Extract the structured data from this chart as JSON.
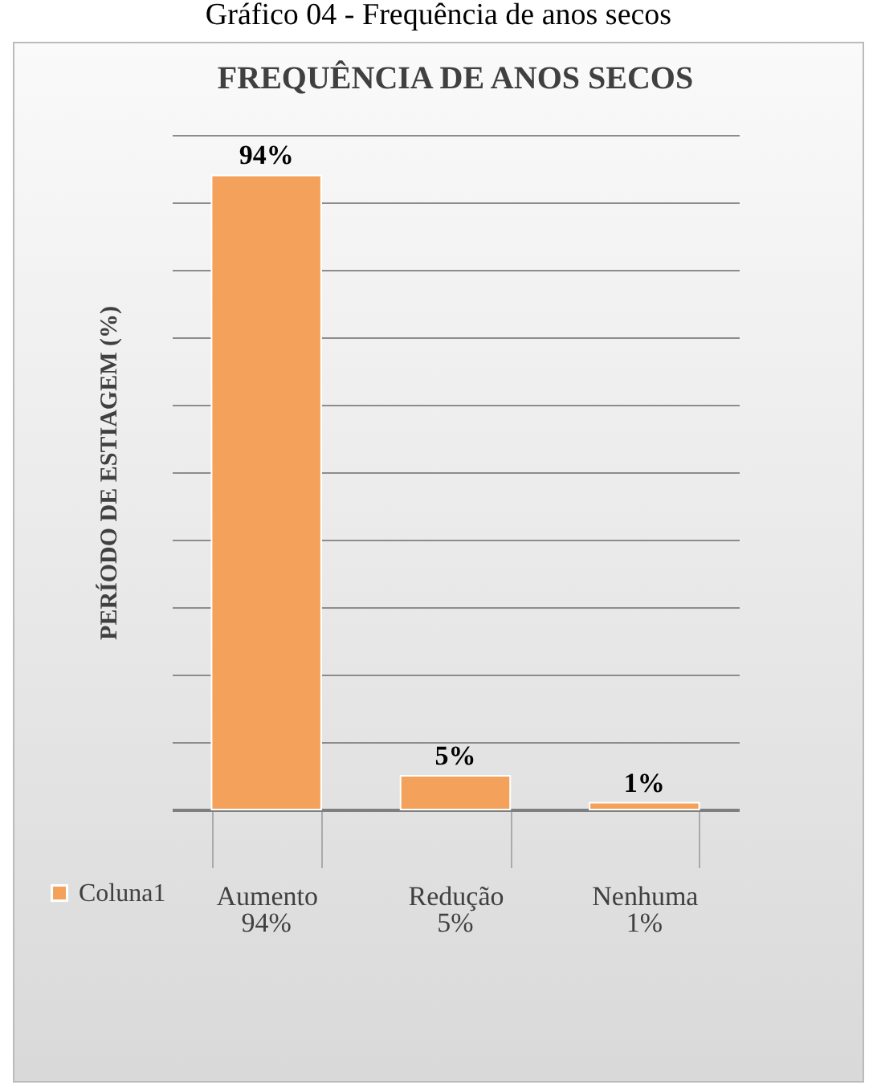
{
  "chart_data": {
    "type": "bar",
    "title": "FREQUÊNCIA DE ANOS SECOS",
    "ylabel": "PERÍODO DE ESTIAGEM (%)",
    "annotations": [
      "Gráfico 04 - Frequência de anos secos"
    ],
    "categories": [
      "Aumento",
      "Redução",
      "Nenhuma"
    ],
    "series": [
      {
        "name": "Coluna1",
        "color": "#f4a25b",
        "values": [
          94,
          5,
          1
        ],
        "value_labels": [
          "94%",
          "5%",
          "1%"
        ]
      }
    ],
    "ylim": [
      0,
      100
    ],
    "yticks": [
      {
        "value": 0,
        "label": null
      },
      {
        "value": 10,
        "label": null
      },
      {
        "value": 20,
        "label": null
      },
      {
        "value": 30,
        "label": null
      },
      {
        "value": 40,
        "label": null
      },
      {
        "value": 50,
        "label": null
      },
      {
        "value": 60,
        "label": null
      },
      {
        "value": 70,
        "label": null
      },
      {
        "value": 80,
        "label": null
      },
      {
        "value": 90,
        "label": null
      },
      {
        "value": 100,
        "label": null
      }
    ],
    "grid": "y",
    "legend": "bottom left"
  }
}
